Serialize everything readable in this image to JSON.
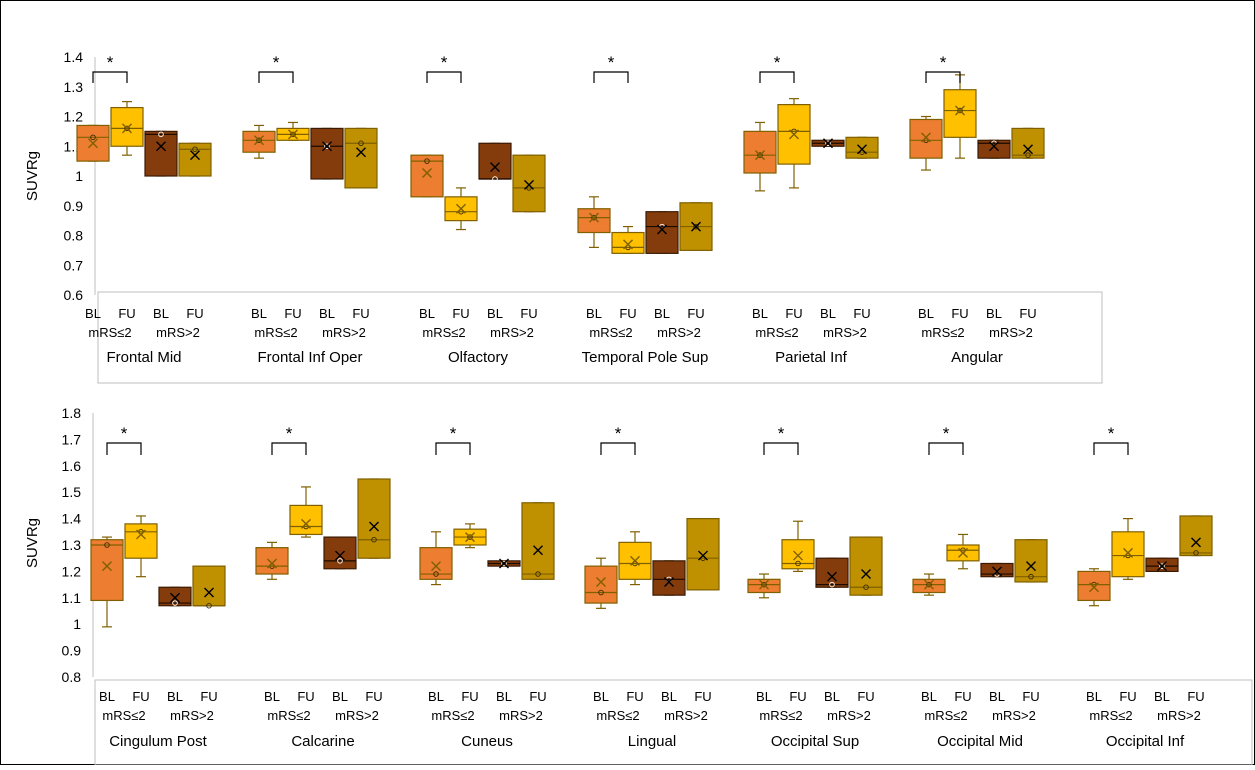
{
  "colors": {
    "bl_mrs_le2": "#ED7D31",
    "fu_mrs_le2": "#FFC000",
    "bl_mrs_gt2": "#843C0C",
    "fu_mrs_gt2": "#BF9000",
    "outline": "#7F6000",
    "axis": "#bfbfbf"
  },
  "chart_data": [
    {
      "type": "box",
      "ylabel": "SUVRg",
      "ylim": [
        0.6,
        1.4
      ],
      "yticks": [
        "0.6",
        "0.7",
        "0.8",
        "0.9",
        "1",
        "1.1",
        "1.2",
        "1.3",
        "1.4"
      ],
      "group_row1": [
        "BL",
        "FU",
        "BL",
        "FU"
      ],
      "group_row2": [
        "mRS≤2",
        "mRS>2"
      ],
      "significance_marker": "*",
      "regions": [
        {
          "name": "Frontal Mid",
          "sig": true,
          "boxes": [
            {
              "min": 1.05,
              "q1": 1.05,
              "median": 1.13,
              "q3": 1.17,
              "max": 1.17,
              "mean": 1.11
            },
            {
              "min": 1.07,
              "q1": 1.1,
              "median": 1.16,
              "q3": 1.23,
              "max": 1.25,
              "mean": 1.16
            },
            {
              "min": 1.0,
              "q1": 1.0,
              "median": 1.14,
              "q3": 1.15,
              "max": 1.15,
              "mean": 1.1
            },
            {
              "min": 1.0,
              "q1": 1.0,
              "median": 1.09,
              "q3": 1.11,
              "max": 1.11,
              "mean": 1.07
            }
          ]
        },
        {
          "name": "Frontal Inf Oper",
          "sig": true,
          "boxes": [
            {
              "min": 1.06,
              "q1": 1.08,
              "median": 1.12,
              "q3": 1.15,
              "max": 1.17,
              "mean": 1.12
            },
            {
              "min": 1.12,
              "q1": 1.12,
              "median": 1.14,
              "q3": 1.16,
              "max": 1.18,
              "mean": 1.14
            },
            {
              "min": 0.99,
              "q1": 0.99,
              "median": 1.1,
              "q3": 1.16,
              "max": 1.16,
              "mean": 1.1
            },
            {
              "min": 0.96,
              "q1": 0.96,
              "median": 1.11,
              "q3": 1.16,
              "max": 1.16,
              "mean": 1.08
            }
          ]
        },
        {
          "name": "Olfactory",
          "sig": true,
          "boxes": [
            {
              "min": 0.93,
              "q1": 0.93,
              "median": 1.05,
              "q3": 1.07,
              "max": 1.07,
              "mean": 1.01
            },
            {
              "min": 0.82,
              "q1": 0.85,
              "median": 0.88,
              "q3": 0.93,
              "max": 0.96,
              "mean": 0.89
            },
            {
              "min": 0.99,
              "q1": 0.99,
              "median": 0.99,
              "q3": 1.11,
              "max": 1.11,
              "mean": 1.03
            },
            {
              "min": 0.88,
              "q1": 0.88,
              "median": 0.96,
              "q3": 1.07,
              "max": 1.07,
              "mean": 0.97
            }
          ]
        },
        {
          "name": "Temporal Pole Sup",
          "sig": true,
          "boxes": [
            {
              "min": 0.76,
              "q1": 0.81,
              "median": 0.86,
              "q3": 0.89,
              "max": 0.93,
              "mean": 0.86
            },
            {
              "min": 0.74,
              "q1": 0.74,
              "median": 0.76,
              "q3": 0.81,
              "max": 0.83,
              "mean": 0.77
            },
            {
              "min": 0.74,
              "q1": 0.74,
              "median": 0.83,
              "q3": 0.88,
              "max": 0.88,
              "mean": 0.82
            },
            {
              "min": 0.75,
              "q1": 0.75,
              "median": 0.83,
              "q3": 0.91,
              "max": 0.91,
              "mean": 0.83
            }
          ]
        },
        {
          "name": "Parietal Inf",
          "sig": true,
          "boxes": [
            {
              "min": 0.95,
              "q1": 1.01,
              "median": 1.07,
              "q3": 1.15,
              "max": 1.18,
              "mean": 1.07
            },
            {
              "min": 0.96,
              "q1": 1.04,
              "median": 1.15,
              "q3": 1.24,
              "max": 1.26,
              "mean": 1.14
            },
            {
              "min": 1.1,
              "q1": 1.1,
              "median": 1.11,
              "q3": 1.12,
              "max": 1.12,
              "mean": 1.11
            },
            {
              "min": 1.06,
              "q1": 1.06,
              "median": 1.08,
              "q3": 1.13,
              "max": 1.13,
              "mean": 1.09
            }
          ]
        },
        {
          "name": "Angular",
          "sig": true,
          "boxes": [
            {
              "min": 1.02,
              "q1": 1.06,
              "median": 1.12,
              "q3": 1.19,
              "max": 1.2,
              "mean": 1.13
            },
            {
              "min": 1.06,
              "q1": 1.13,
              "median": 1.22,
              "q3": 1.29,
              "max": 1.34,
              "mean": 1.22
            },
            {
              "min": 1.06,
              "q1": 1.06,
              "median": 1.11,
              "q3": 1.12,
              "max": 1.12,
              "mean": 1.1
            },
            {
              "min": 1.06,
              "q1": 1.06,
              "median": 1.07,
              "q3": 1.16,
              "max": 1.16,
              "mean": 1.09
            }
          ]
        }
      ]
    },
    {
      "type": "box",
      "ylabel": "SUVRg",
      "ylim": [
        0.8,
        1.8
      ],
      "yticks": [
        "0.8",
        "0.9",
        "1",
        "1.1",
        "1.2",
        "1.3",
        "1.4",
        "1.5",
        "1.6",
        "1.7",
        "1.8"
      ],
      "group_row1": [
        "BL",
        "FU",
        "BL",
        "FU"
      ],
      "group_row2": [
        "mRS≤2",
        "mRS>2"
      ],
      "significance_marker": "*",
      "regions": [
        {
          "name": "Cingulum Post",
          "sig": true,
          "boxes": [
            {
              "min": 0.99,
              "q1": 1.09,
              "median": 1.3,
              "q3": 1.32,
              "max": 1.33,
              "mean": 1.22
            },
            {
              "min": 1.18,
              "q1": 1.25,
              "median": 1.35,
              "q3": 1.38,
              "max": 1.41,
              "mean": 1.34
            },
            {
              "min": 1.07,
              "q1": 1.07,
              "median": 1.08,
              "q3": 1.14,
              "max": 1.14,
              "mean": 1.1
            },
            {
              "min": 1.07,
              "q1": 1.07,
              "median": 1.07,
              "q3": 1.22,
              "max": 1.22,
              "mean": 1.12
            }
          ]
        },
        {
          "name": "Calcarine",
          "sig": true,
          "boxes": [
            {
              "min": 1.17,
              "q1": 1.19,
              "median": 1.22,
              "q3": 1.29,
              "max": 1.31,
              "mean": 1.23
            },
            {
              "min": 1.33,
              "q1": 1.34,
              "median": 1.37,
              "q3": 1.45,
              "max": 1.52,
              "mean": 1.38
            },
            {
              "min": 1.21,
              "q1": 1.21,
              "median": 1.24,
              "q3": 1.33,
              "max": 1.33,
              "mean": 1.26
            },
            {
              "min": 1.25,
              "q1": 1.25,
              "median": 1.32,
              "q3": 1.55,
              "max": 1.55,
              "mean": 1.37
            }
          ]
        },
        {
          "name": "Cuneus",
          "sig": true,
          "boxes": [
            {
              "min": 1.15,
              "q1": 1.17,
              "median": 1.19,
              "q3": 1.29,
              "max": 1.35,
              "mean": 1.22
            },
            {
              "min": 1.29,
              "q1": 1.3,
              "median": 1.33,
              "q3": 1.36,
              "max": 1.38,
              "mean": 1.33
            },
            {
              "min": 1.22,
              "q1": 1.22,
              "median": 1.23,
              "q3": 1.24,
              "max": 1.24,
              "mean": 1.23
            },
            {
              "min": 1.17,
              "q1": 1.17,
              "median": 1.19,
              "q3": 1.46,
              "max": 1.46,
              "mean": 1.28
            }
          ]
        },
        {
          "name": "Lingual",
          "sig": true,
          "boxes": [
            {
              "min": 1.06,
              "q1": 1.08,
              "median": 1.12,
              "q3": 1.22,
              "max": 1.25,
              "mean": 1.16
            },
            {
              "min": 1.15,
              "q1": 1.17,
              "median": 1.23,
              "q3": 1.31,
              "max": 1.35,
              "mean": 1.24
            },
            {
              "min": 1.11,
              "q1": 1.11,
              "median": 1.17,
              "q3": 1.24,
              "max": 1.24,
              "mean": 1.16
            },
            {
              "min": 1.13,
              "q1": 1.13,
              "median": 1.25,
              "q3": 1.4,
              "max": 1.4,
              "mean": 1.26
            }
          ]
        },
        {
          "name": "Occipital Sup",
          "sig": true,
          "boxes": [
            {
              "min": 1.1,
              "q1": 1.12,
              "median": 1.15,
              "q3": 1.17,
              "max": 1.19,
              "mean": 1.15
            },
            {
              "min": 1.2,
              "q1": 1.21,
              "median": 1.23,
              "q3": 1.32,
              "max": 1.39,
              "mean": 1.26
            },
            {
              "min": 1.14,
              "q1": 1.14,
              "median": 1.15,
              "q3": 1.25,
              "max": 1.25,
              "mean": 1.18
            },
            {
              "min": 1.11,
              "q1": 1.11,
              "median": 1.14,
              "q3": 1.33,
              "max": 1.33,
              "mean": 1.19
            }
          ]
        },
        {
          "name": "Occipital Mid",
          "sig": true,
          "boxes": [
            {
              "min": 1.11,
              "q1": 1.12,
              "median": 1.15,
              "q3": 1.17,
              "max": 1.19,
              "mean": 1.15
            },
            {
              "min": 1.21,
              "q1": 1.24,
              "median": 1.28,
              "q3": 1.3,
              "max": 1.34,
              "mean": 1.27
            },
            {
              "min": 1.18,
              "q1": 1.18,
              "median": 1.19,
              "q3": 1.23,
              "max": 1.23,
              "mean": 1.2
            },
            {
              "min": 1.16,
              "q1": 1.16,
              "median": 1.18,
              "q3": 1.32,
              "max": 1.32,
              "mean": 1.22
            }
          ]
        },
        {
          "name": "Occipital Inf",
          "sig": true,
          "boxes": [
            {
              "min": 1.07,
              "q1": 1.09,
              "median": 1.15,
              "q3": 1.2,
              "max": 1.21,
              "mean": 1.14
            },
            {
              "min": 1.17,
              "q1": 1.18,
              "median": 1.26,
              "q3": 1.35,
              "max": 1.4,
              "mean": 1.27
            },
            {
              "min": 1.2,
              "q1": 1.2,
              "median": 1.22,
              "q3": 1.25,
              "max": 1.25,
              "mean": 1.22
            },
            {
              "min": 1.26,
              "q1": 1.26,
              "median": 1.27,
              "q3": 1.41,
              "max": 1.41,
              "mean": 1.31
            }
          ]
        }
      ]
    }
  ]
}
